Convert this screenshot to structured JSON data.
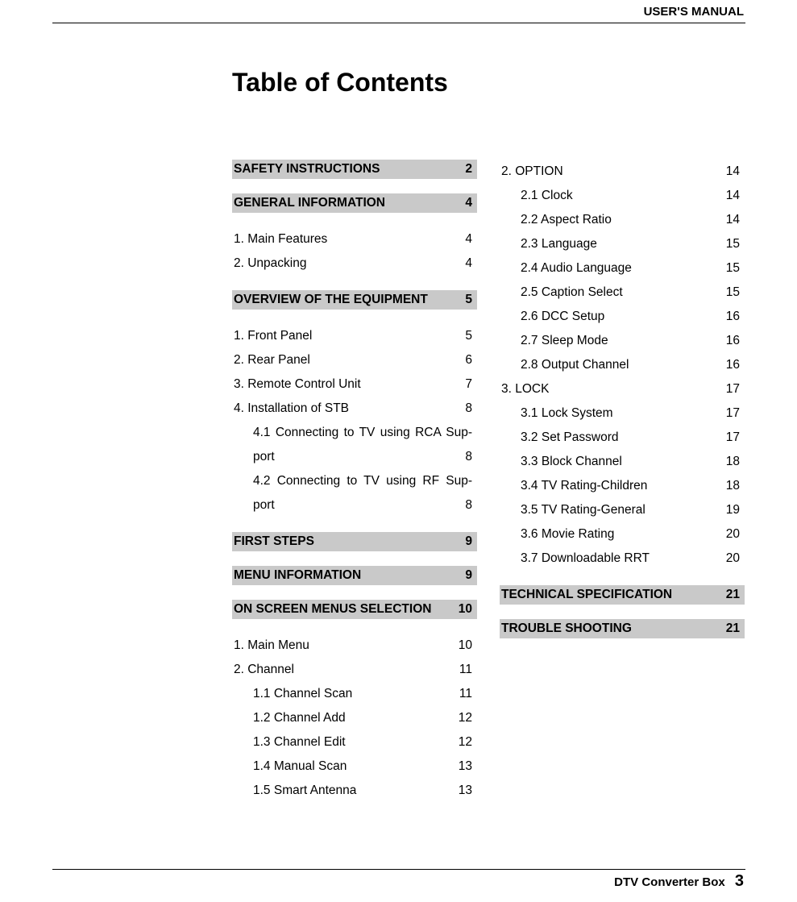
{
  "header": {
    "label": "USER'S MANUAL"
  },
  "title": "Table of Contents",
  "footer": {
    "label": "DTV Converter Box",
    "page": "3"
  },
  "col1": {
    "sec1": {
      "label": "SAFETY INSTRUCTIONS",
      "page": "2"
    },
    "sec2": {
      "label": "GENERAL INFORMATION",
      "page": "4"
    },
    "e1": {
      "label": "1. Main Features",
      "page": "4"
    },
    "e2": {
      "label": "2. Unpacking",
      "page": "4"
    },
    "sec3": {
      "label": "OVERVIEW OF THE EQUIPMENT",
      "page": "5"
    },
    "e3": {
      "label": "1. Front Panel",
      "page": "5"
    },
    "e4": {
      "label": "2. Rear Panel",
      "page": "6"
    },
    "e5": {
      "label": "3. Remote Control Unit",
      "page": "7"
    },
    "e6": {
      "label": "4. Installation of STB",
      "page": "8"
    },
    "e7a": "4.1 Connecting to TV using RCA Sup-",
    "e7b": {
      "label": "port",
      "page": "8"
    },
    "e8a": "4.2 Connecting to TV using  RF Sup-",
    "e8b": {
      "label": "port",
      "page": "8"
    },
    "sec4": {
      "label": "FIRST STEPS",
      "page": "9"
    },
    "sec5": {
      "label": "MENU INFORMATION",
      "page": "9"
    },
    "sec6": {
      "label": "ON SCREEN MENUS SELECTION",
      "page": "10"
    },
    "e9": {
      "label": "1. Main Menu",
      "page": "10"
    },
    "e10": {
      "label": "2. Channel",
      "page": "11"
    },
    "e11": {
      "label": "1.1 Channel Scan",
      "page": "11"
    },
    "e12": {
      "label": "1.2 Channel Add",
      "page": "12"
    },
    "e13": {
      "label": "1.3 Channel Edit",
      "page": "12"
    },
    "e14": {
      "label": "1.4 Manual Scan",
      "page": "13"
    },
    "e15": {
      "label": "1.5 Smart Antenna",
      "page": "13"
    }
  },
  "col2": {
    "e1": {
      "label": "2. OPTION",
      "page": "14"
    },
    "e2": {
      "label": "2.1 Clock",
      "page": "14"
    },
    "e3": {
      "label": "2.2 Aspect Ratio",
      "page": "14"
    },
    "e4": {
      "label": "2.3 Language",
      "page": "15"
    },
    "e5": {
      "label": "2.4 Audio Language",
      "page": "15"
    },
    "e6": {
      "label": "2.5 Caption Select",
      "page": "15"
    },
    "e7": {
      "label": "2.6 DCC Setup",
      "page": "16"
    },
    "e8": {
      "label": "2.7 Sleep Mode",
      "page": "16"
    },
    "e9": {
      "label": "2.8 Output Channel",
      "page": "16"
    },
    "e10": {
      "label": "3. LOCK",
      "page": "17"
    },
    "e11": {
      "label": "3.1 Lock System",
      "page": "17"
    },
    "e12": {
      "label": "3.2 Set Password",
      "page": "17"
    },
    "e13": {
      "label": "3.3 Block Channel",
      "page": "18"
    },
    "e14": {
      "label": "3.4 TV Rating-Children",
      "page": "18"
    },
    "e15": {
      "label": "3.5 TV Rating-General",
      "page": "19"
    },
    "e16": {
      "label": "3.6 Movie Rating",
      "page": "20"
    },
    "e17": {
      "label": "3.7 Downloadable RRT",
      "page": "20"
    },
    "sec1": {
      "label": "TECHNICAL SPECIFICATION",
      "page": "21"
    },
    "sec2": {
      "label": "TROUBLE SHOOTING",
      "page": "21"
    }
  }
}
